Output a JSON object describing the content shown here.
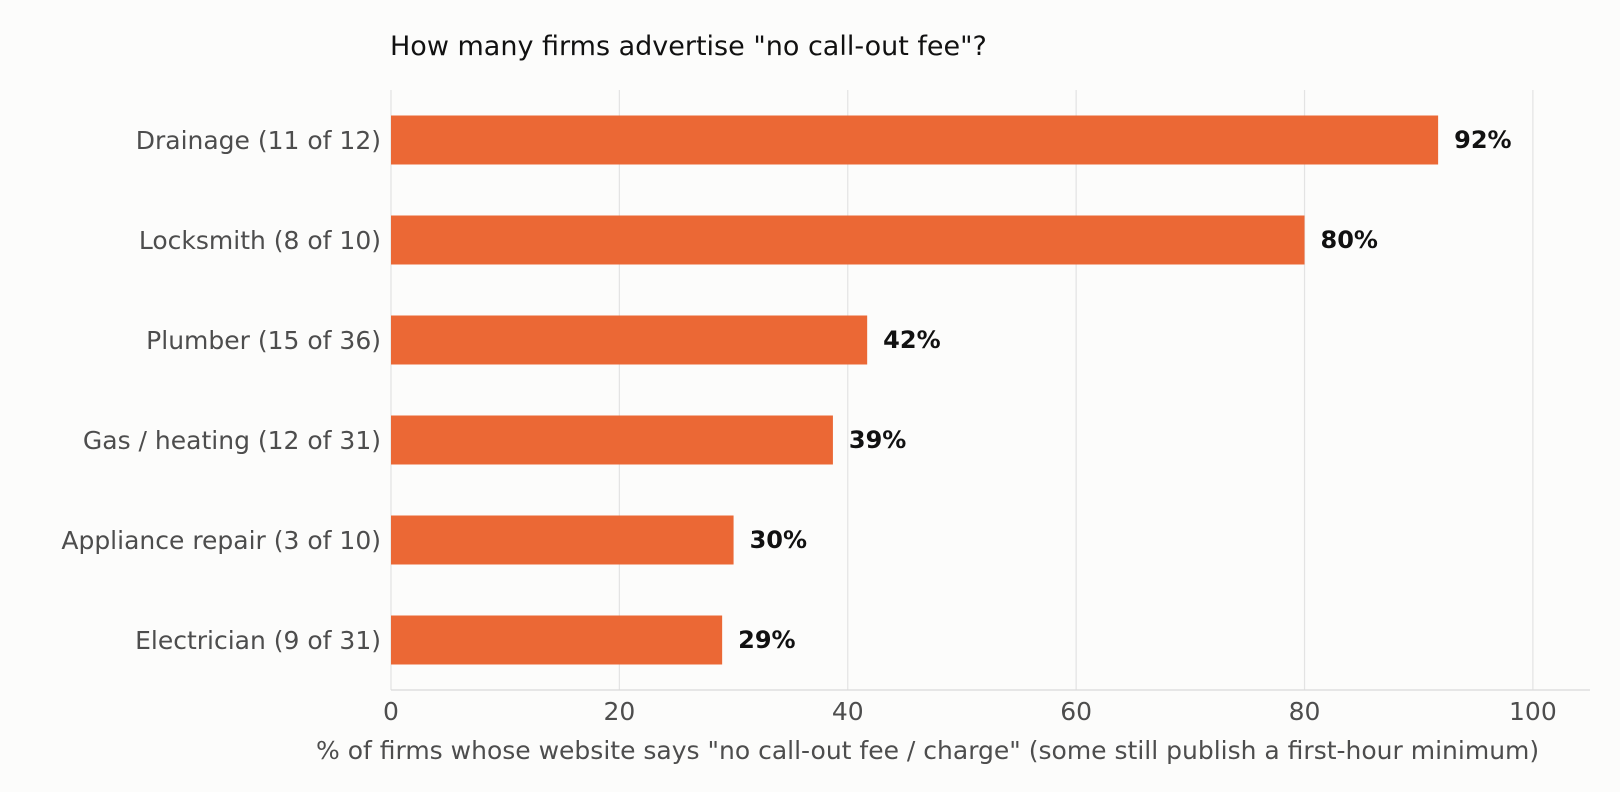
{
  "chart_data": {
    "type": "bar",
    "orientation": "horizontal",
    "title": "How many firms advertise \"no call-out fee\"?",
    "xlabel": "% of firms whose website says \"no call-out fee / charge\" (some still publish a first-hour minimum)",
    "ylabel": "",
    "categories": [
      "Drainage (11 of 12)",
      "Locksmith (8 of 10)",
      "Plumber (15 of 36)",
      "Gas / heating (12 of 31)",
      "Appliance repair (3 of 10)",
      "Electrician (9 of 31)"
    ],
    "values": [
      91.7,
      80.0,
      41.7,
      38.7,
      30.0,
      29.0
    ],
    "data_labels": [
      "92%",
      "80%",
      "42%",
      "39%",
      "30%",
      "29%"
    ],
    "xlim": [
      0,
      105
    ],
    "xticks": [
      0,
      20,
      40,
      60,
      80,
      100
    ],
    "xtick_labels": [
      "0",
      "20",
      "40",
      "60",
      "80",
      "100"
    ],
    "grid": "vertical",
    "legend": "none",
    "colors": {
      "bar": "#eb6835",
      "background": "#fcfcfb"
    }
  }
}
